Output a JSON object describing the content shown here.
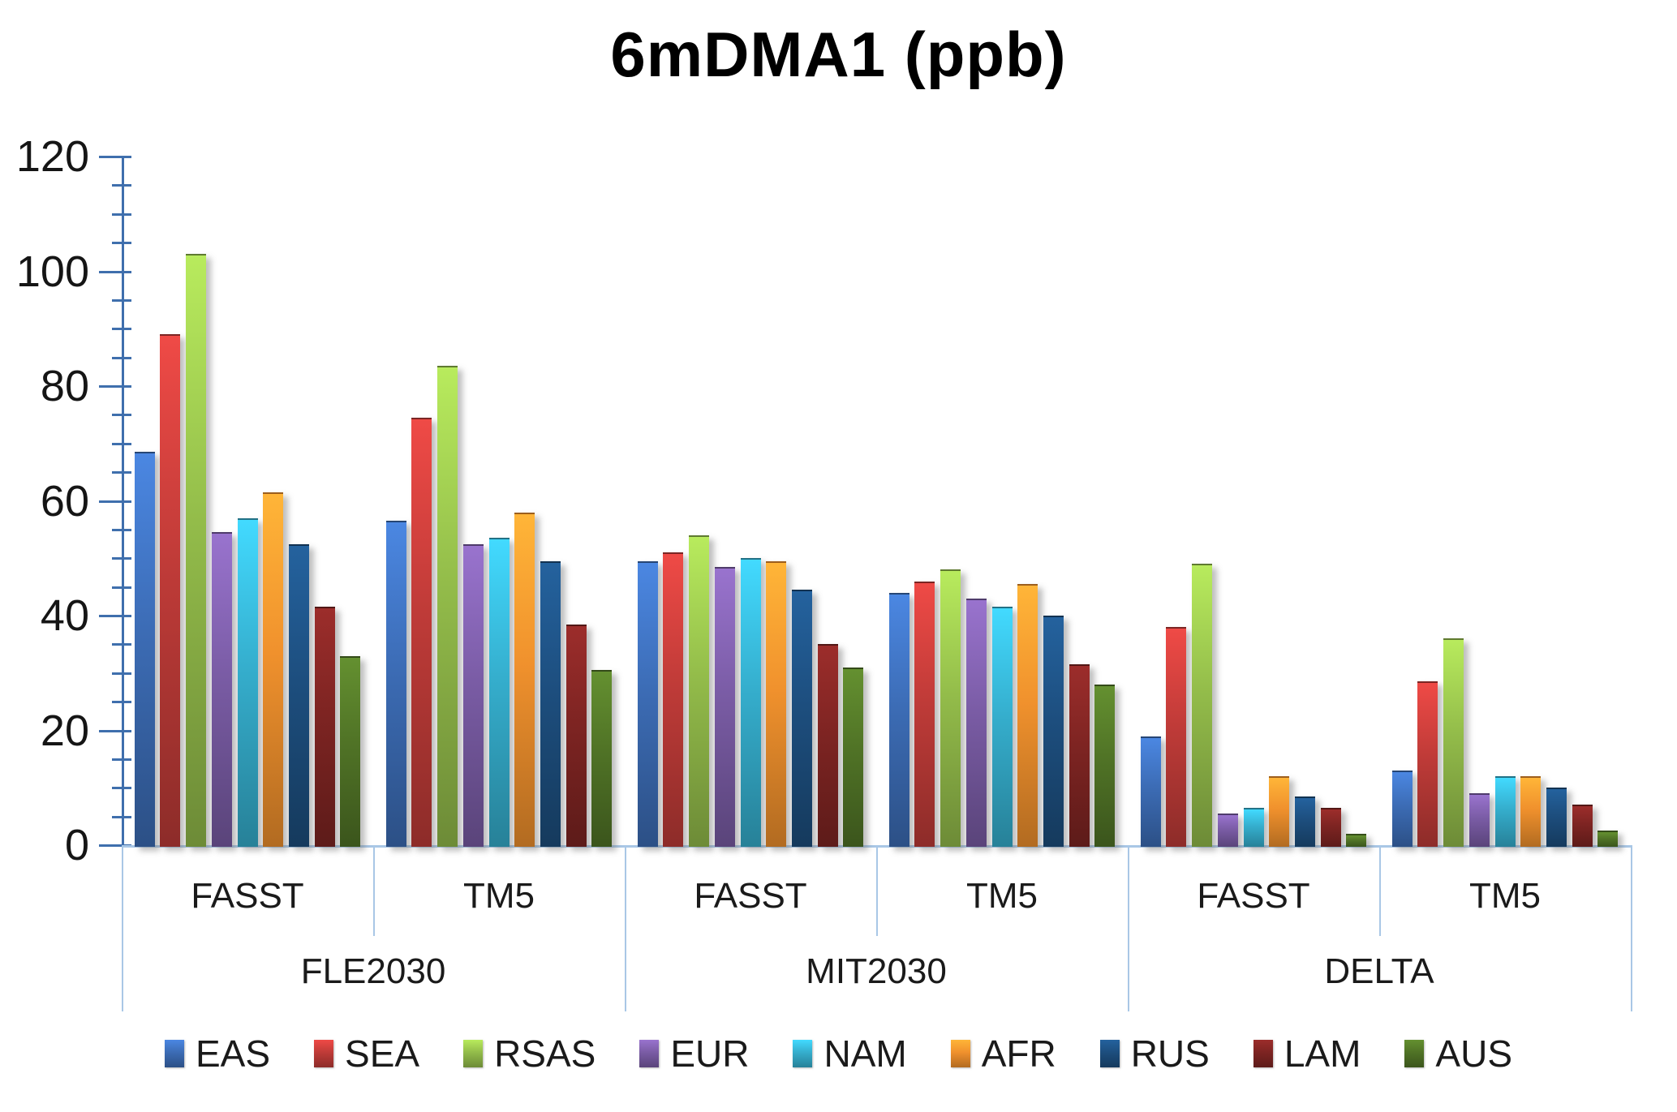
{
  "title": "6mDMA1 (ppb)",
  "chart_data": {
    "type": "bar",
    "title": "6mDMA1 (ppb)",
    "xlabel": "",
    "ylabel": "",
    "legend_position": "bottom",
    "grid": false,
    "y_axis": {
      "min": 0,
      "max": 120,
      "major_step": 20,
      "minor_step": 5,
      "tick_labels": [
        "0",
        "20",
        "40",
        "60",
        "80",
        "100",
        "120"
      ]
    },
    "axis_color": "#3f6fad",
    "divider_color": "#a9c7e6",
    "series": [
      {
        "name": "EAS",
        "color": "#3c6cb5"
      },
      {
        "name": "SEA",
        "color": "#bf3b38"
      },
      {
        "name": "RSAS",
        "color": "#93bc4a"
      },
      {
        "name": "EUR",
        "color": "#7a5ca5"
      },
      {
        "name": "NAM",
        "color": "#35aecd"
      },
      {
        "name": "AFR",
        "color": "#f0912d"
      },
      {
        "name": "RUS",
        "color": "#1d4e7e"
      },
      {
        "name": "LAM",
        "color": "#7d2422"
      },
      {
        "name": "AUS",
        "color": "#507326"
      }
    ],
    "sections": [
      {
        "label": "FLE2030",
        "groups": [
          {
            "label": "FASST",
            "values": [
              68.5,
              89,
              103,
              54.5,
              57,
              61.5,
              52.5,
              41.5,
              33
            ]
          },
          {
            "label": "TM5",
            "values": [
              56.5,
              74.5,
              83.5,
              52.5,
              53.5,
              58,
              49.5,
              38.5,
              30.5
            ]
          }
        ]
      },
      {
        "label": "MIT2030",
        "groups": [
          {
            "label": "FASST",
            "values": [
              49.5,
              51,
              54,
              48.5,
              50,
              49.5,
              44.5,
              35,
              31
            ]
          },
          {
            "label": "TM5",
            "values": [
              44,
              46,
              48,
              43,
              41.5,
              45.5,
              40,
              31.5,
              28
            ]
          }
        ]
      },
      {
        "label": "DELTA",
        "groups": [
          {
            "label": "FASST",
            "values": [
              19,
              38,
              49,
              5.5,
              6.5,
              12,
              8.5,
              6.5,
              2
            ]
          },
          {
            "label": "TM5",
            "values": [
              13,
              28.5,
              36,
              9,
              12,
              12,
              10,
              7,
              2.5
            ]
          }
        ]
      }
    ]
  }
}
